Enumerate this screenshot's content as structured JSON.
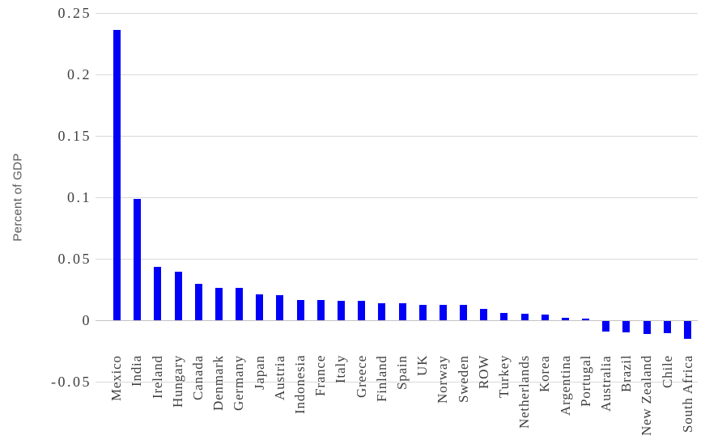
{
  "chart_data": {
    "type": "bar",
    "title": "",
    "xlabel": "",
    "ylabel": "Percent of GDP",
    "categories": [
      "Mexico",
      "India",
      "Ireland",
      "Hungary",
      "Canada",
      "Denmark",
      "Germany",
      "Japan",
      "Austria",
      "Indonesia",
      "France",
      "Italy",
      "Greece",
      "Finland",
      "Spain",
      "UK",
      "Norway",
      "Sweden",
      "ROW",
      "Turkey",
      "Netherlands",
      "Korea",
      "Argentina",
      "Portugal",
      "Australia",
      "Brazil",
      "New Zealand",
      "Chile",
      "South Africa"
    ],
    "values": [
      0.2365,
      0.099,
      0.0435,
      0.0395,
      0.0295,
      0.026,
      0.026,
      0.0212,
      0.0206,
      0.0167,
      0.0167,
      0.016,
      0.016,
      0.0136,
      0.0136,
      0.0124,
      0.0128,
      0.0128,
      0.009,
      0.0062,
      0.0051,
      0.0045,
      0.0021,
      0.0015,
      -0.0086,
      -0.0092,
      -0.0103,
      -0.0099,
      -0.0147
    ],
    "ylim": [
      -0.05,
      0.25
    ],
    "ytick_step": 0.05,
    "ytick_values": [
      0.25,
      0.2,
      0.15,
      0.1,
      0.05,
      0,
      -0.05
    ],
    "ytick_labels": [
      "0.25",
      "0.2",
      "0.15",
      "0.1",
      "0.05",
      "0",
      "-0.05"
    ],
    "grid": "horizontal",
    "legend": "none",
    "colors": {
      "bar": "#0000f8",
      "gridline": "#d9d9d9",
      "zero_axis": "#c3c3c3",
      "tick_text": "#3f3f3f",
      "category_text": "#3f3f3f",
      "axis_title_text": "#595959",
      "background": "#ffffff"
    }
  }
}
